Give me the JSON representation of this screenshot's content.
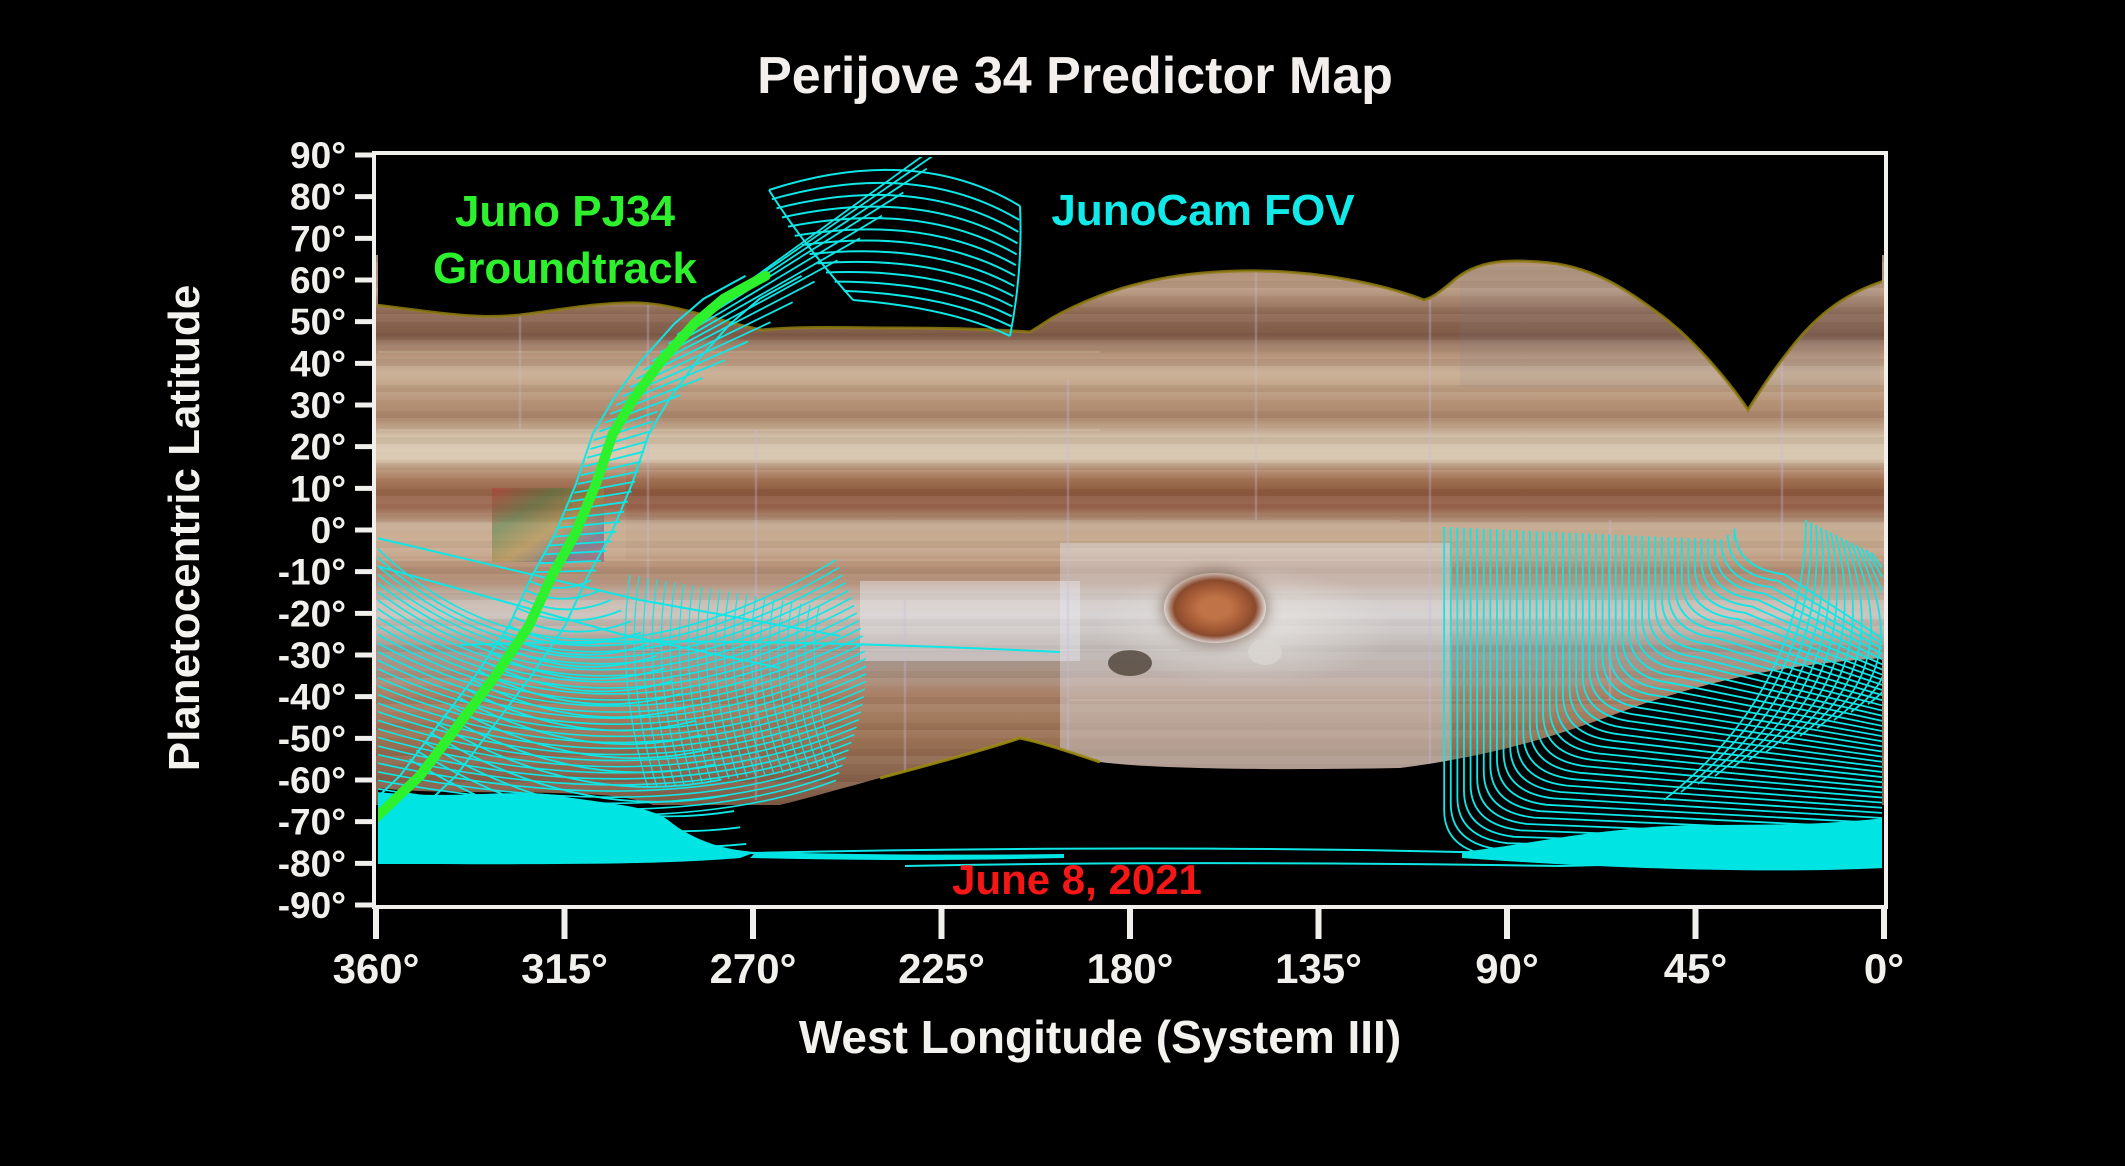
{
  "title": "Perijove 34 Predictor Map",
  "axes": {
    "y_label": "Planetocentric Latitude",
    "x_label": "West Longitude (System III)",
    "y_tick_labels": [
      "90°",
      "80°",
      "70°",
      "60°",
      "50°",
      "40°",
      "30°",
      "20°",
      "10°",
      "0°",
      "-10°",
      "-20°",
      "-30°",
      "-40°",
      "-50°",
      "-60°",
      "-70°",
      "-80°",
      "-90°"
    ],
    "y_tick_values": [
      90,
      80,
      70,
      60,
      50,
      40,
      30,
      20,
      10,
      0,
      -10,
      -20,
      -30,
      -40,
      -50,
      -60,
      -70,
      -80,
      -90
    ],
    "x_tick_labels": [
      "360°",
      "315°",
      "270°",
      "225°",
      "180°",
      "135°",
      "90°",
      "45°",
      "0°"
    ],
    "x_tick_values": [
      360,
      315,
      270,
      225,
      180,
      135,
      90,
      45,
      0
    ]
  },
  "annotations": {
    "groundtrack_label": [
      "Juno PJ34",
      "Groundtrack"
    ],
    "fov_label": "JunoCam FOV",
    "date_label": "June 8, 2021"
  },
  "colors": {
    "groundtrack_green": "#2df12d",
    "fov_cyan": "#0fe6e6",
    "fov_fill_cyan": "#00e4e4",
    "date_red": "#f51616",
    "axis_white": "#f2f0ec",
    "background": "#000000"
  },
  "chart_data": {
    "type": "map",
    "title": "Perijove 34 Predictor Map",
    "description": "JunoCam mosaic basemap of Jupiter with Juno PJ34 groundtrack and predicted JunoCam field-of-view footprints",
    "xlabel": "West Longitude (System III)",
    "ylabel": "Planetocentric Latitude",
    "x_range_deg": [
      360,
      0
    ],
    "y_range_deg": [
      -90,
      90
    ],
    "x_tick_step_deg": 45,
    "y_tick_step_deg": 10,
    "date": "June 8, 2021",
    "series": [
      {
        "name": "Juno PJ34 Groundtrack",
        "color": "#2df12d",
        "lon_lat": [
          [
            360,
            -69
          ],
          [
            349.5,
            -59
          ],
          [
            340.5,
            -47
          ],
          [
            331.5,
            -35
          ],
          [
            323.5,
            -23
          ],
          [
            318,
            -11
          ],
          [
            312.5,
            -1
          ],
          [
            307.5,
            11
          ],
          [
            303.5,
            23
          ],
          [
            298.5,
            31.5
          ],
          [
            292,
            40.5
          ],
          [
            284,
            49.5
          ],
          [
            277,
            55.5
          ],
          [
            267,
            61
          ]
        ]
      }
    ],
    "fov_footprints": {
      "color": "#0fe6e6",
      "north_fan": {
        "lon_range": [
          266,
          207
        ],
        "lat_range": [
          81,
          46
        ],
        "arc_count": 13
      },
      "track_ladder": {
        "lat_range": [
          -58,
          56
        ],
        "rung_count": 52
      },
      "south_swath_arcs": {
        "lon_range": [
          360,
          250
        ],
        "lat_range": [
          -5,
          -65
        ],
        "arc_count": 30
      },
      "right_swath_lines": {
        "lon_range": [
          105,
          34
        ],
        "lat_range": [
          0,
          -60
        ],
        "line_count": 45
      },
      "east_fan": {
        "lon_range": [
          19,
          0
        ],
        "lat_range": [
          1,
          -66
        ],
        "arc_count": 14
      },
      "south_polar_fill_west": {
        "lon_range": [
          360,
          255
        ],
        "lat_range": [
          -64,
          -81
        ]
      },
      "south_polar_fill_east": {
        "lon_range": [
          100,
          0
        ],
        "lat_range": [
          -71,
          -81
        ]
      }
    }
  }
}
